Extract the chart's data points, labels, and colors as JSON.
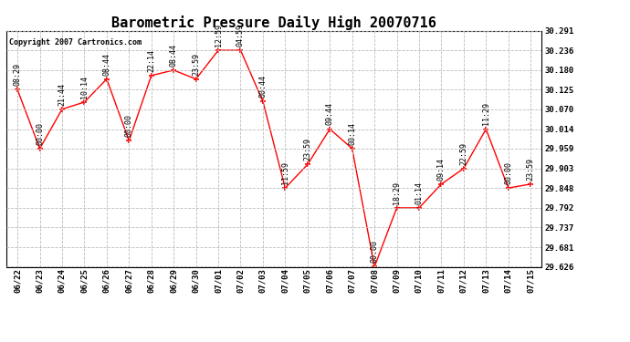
{
  "title": "Barometric Pressure Daily High 20070716",
  "copyright": "Copyright 2007 Cartronics.com",
  "x_labels": [
    "06/22",
    "06/23",
    "06/24",
    "06/25",
    "06/26",
    "06/27",
    "06/28",
    "06/29",
    "06/30",
    "07/01",
    "07/02",
    "07/03",
    "07/04",
    "07/05",
    "07/06",
    "07/07",
    "07/08",
    "07/09",
    "07/10",
    "07/11",
    "07/12",
    "07/13",
    "07/14",
    "07/15"
  ],
  "x_values": [
    0,
    1,
    2,
    3,
    4,
    5,
    6,
    7,
    8,
    9,
    10,
    11,
    12,
    13,
    14,
    15,
    16,
    17,
    18,
    19,
    20,
    21,
    22,
    23
  ],
  "y_values": [
    30.125,
    29.959,
    30.07,
    30.09,
    30.155,
    29.981,
    30.165,
    30.18,
    30.155,
    30.236,
    30.236,
    30.092,
    29.848,
    29.914,
    30.014,
    29.959,
    29.626,
    29.792,
    29.792,
    29.859,
    29.903,
    30.014,
    29.848,
    29.859
  ],
  "point_labels": [
    "08:29",
    "00:00",
    "21:44",
    "10:14",
    "08:44",
    "00:00",
    "22:14",
    "08:44",
    "23:59",
    "12:59",
    "04:59",
    "00:44",
    "11:59",
    "23:59",
    "09:44",
    "00:14",
    "00:00",
    "18:29",
    "01:14",
    "09:14",
    "22:59",
    "11:29",
    "00:00",
    "23:59"
  ],
  "ylim_min": 29.626,
  "ylim_max": 30.291,
  "ytick_values": [
    29.626,
    29.681,
    29.737,
    29.792,
    29.848,
    29.903,
    29.959,
    30.014,
    30.07,
    30.125,
    30.18,
    30.236,
    30.291
  ],
  "line_color": "red",
  "marker_color": "red",
  "background_color": "white",
  "grid_color": "#bbbbbb",
  "title_fontsize": 11,
  "label_fontsize": 6.5,
  "annotation_fontsize": 6,
  "copyright_fontsize": 6
}
